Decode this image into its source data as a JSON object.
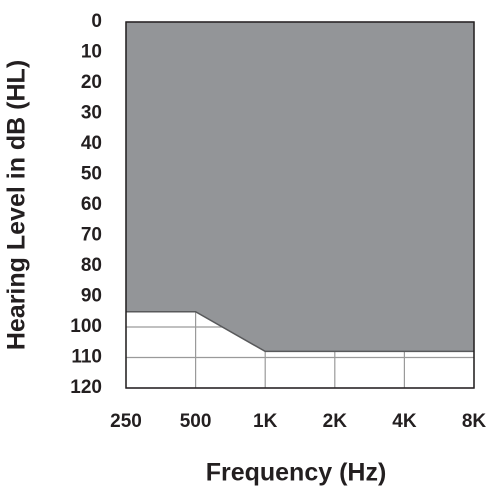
{
  "chart_data": {
    "type": "area",
    "xlabel": "Frequency (Hz)",
    "ylabel": "Hearing Level in dB (HL)",
    "categories": [
      "250",
      "500",
      "1K",
      "2K",
      "4K",
      "8K"
    ],
    "values": [
      95,
      95,
      108,
      108,
      108,
      108
    ],
    "color": "#939598",
    "ylim": [
      0,
      120
    ],
    "y_inverted": true,
    "yticks": [
      0,
      10,
      20,
      30,
      40,
      50,
      60,
      70,
      80,
      90,
      100,
      110,
      120
    ],
    "grid": true
  }
}
